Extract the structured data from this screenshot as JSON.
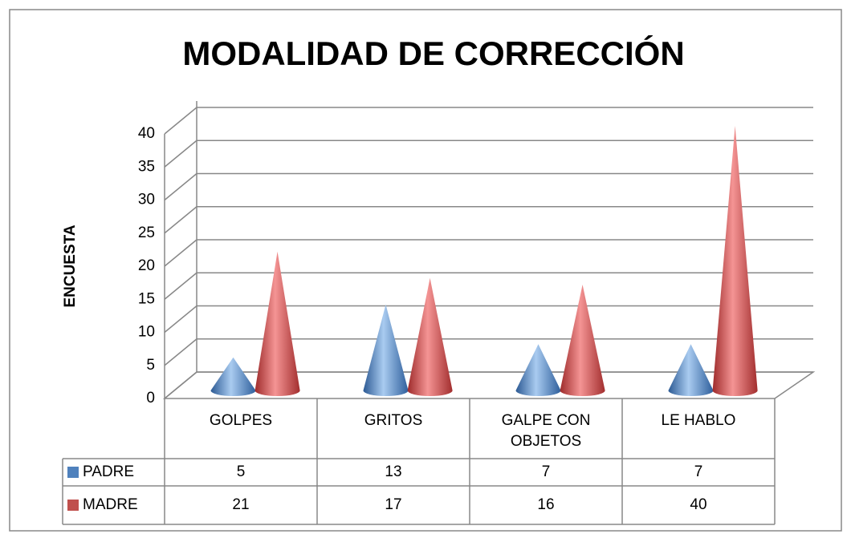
{
  "chart_data": {
    "type": "cone3d",
    "title": "MODALIDAD DE CORRECCIÓN",
    "y_label": "ENCUESTA",
    "categories": [
      "GOLPES",
      "GRITOS",
      "GALPE CON OBJETOS",
      "LE HABLO"
    ],
    "series": [
      {
        "name": "PADRE",
        "color": "#4f81bd",
        "values": [
          5,
          13,
          7,
          7
        ]
      },
      {
        "name": "MADRE",
        "color": "#c0504d",
        "values": [
          21,
          17,
          16,
          40
        ]
      }
    ],
    "ylim": [
      0,
      40
    ],
    "yticks": [
      0,
      5,
      10,
      15,
      20,
      25,
      30,
      35,
      40
    ],
    "grid": true,
    "data_table": true
  }
}
